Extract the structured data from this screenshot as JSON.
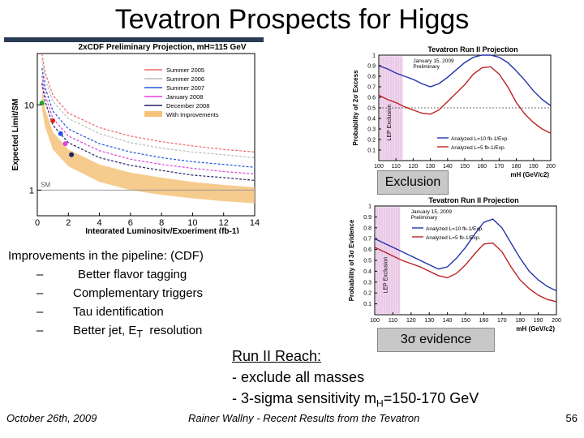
{
  "slide": {
    "title": "Tevatron Prospects for Higgs",
    "bullets_head": "Improvements in the pipeline: (CDF)",
    "bullets": [
      {
        "dash": "–",
        "text": "Better flavor tagging"
      },
      {
        "dash": "–",
        "text": "Complementary triggers"
      },
      {
        "dash": "–",
        "text": "Tau identification"
      }
    ],
    "last_bullet": {
      "dash": "–",
      "pre": "Better jet, E",
      "sub": "T",
      "post": "  resolution"
    },
    "reach": {
      "head": "Run II Reach:",
      "line1": "- exclude all masses",
      "line2_pre": "- 3-sigma sensitivity m",
      "line2_sub": "H",
      "line2_post": "=150-170 GeV"
    },
    "callout_exclusion": "Exclusion",
    "callout_evidence_sym": "3σ",
    "callout_evidence_txt": " evidence",
    "footer_date": "October 26th, 2009",
    "footer_center": "Rainer Wallny - Recent Results from the Tevatron",
    "page_number": "56"
  },
  "chart_data": [
    {
      "type": "line",
      "title": "2xCDF Preliminary Projection, mH=115 GeV",
      "xlabel": "Integrated Luminosity/Experiment (fb-1)",
      "ylabel": "Expected Limit/SM",
      "yscale": "log",
      "xlim": [
        0,
        14
      ],
      "ylim": [
        0.5,
        40
      ],
      "x_ticks": [
        0,
        2,
        4,
        6,
        8,
        10,
        12,
        14
      ],
      "y_ticks": [
        1,
        10
      ],
      "sm_label": "SM",
      "legend": [
        "Summer 2005",
        "Summer 2006",
        "Summer 2007",
        "January 2008",
        "December 2008",
        "With Improvements"
      ],
      "legend_colors": [
        "#ee6666",
        "#bbbbbb",
        "#2255dd",
        "#dd44dd",
        "#222266",
        "#f5c27a"
      ],
      "series": [
        {
          "name": "Summer 2005",
          "color": "#ee6666",
          "points": [
            [
              0.3,
              40
            ],
            [
              0.5,
              24
            ],
            [
              1,
              13
            ],
            [
              2,
              8
            ],
            [
              4,
              5.4
            ],
            [
              6,
              4.3
            ],
            [
              8,
              3.7
            ],
            [
              10,
              3.3
            ],
            [
              12,
              3.0
            ],
            [
              14,
              2.8
            ]
          ]
        },
        {
          "name": "Summer 2006",
          "color": "#bbbbbb",
          "points": [
            [
              0.3,
              34
            ],
            [
              0.5,
              20
            ],
            [
              1,
              11
            ],
            [
              2,
              6.9
            ],
            [
              4,
              4.6
            ],
            [
              6,
              3.6
            ],
            [
              8,
              3.1
            ],
            [
              10,
              2.8
            ],
            [
              12,
              2.6
            ],
            [
              14,
              2.4
            ]
          ]
        },
        {
          "name": "Summer 2007",
          "color": "#2255dd",
          "points": [
            [
              0.3,
              27
            ],
            [
              0.5,
              16
            ],
            [
              1,
              8.5
            ],
            [
              2,
              5.2
            ],
            [
              4,
              3.5
            ],
            [
              6,
              2.8
            ],
            [
              8,
              2.4
            ],
            [
              10,
              2.15
            ],
            [
              12,
              2.0
            ],
            [
              14,
              1.85
            ]
          ]
        },
        {
          "name": "January 2008",
          "color": "#dd44dd",
          "points": [
            [
              0.3,
              22
            ],
            [
              0.5,
              13
            ],
            [
              1,
              7
            ],
            [
              2,
              4.3
            ],
            [
              4,
              2.9
            ],
            [
              6,
              2.3
            ],
            [
              8,
              2.0
            ],
            [
              10,
              1.8
            ],
            [
              12,
              1.65
            ],
            [
              14,
              1.55
            ]
          ]
        },
        {
          "name": "December 2008",
          "color": "#222266",
          "points": [
            [
              0.3,
              18
            ],
            [
              0.5,
              11
            ],
            [
              1,
              5.8
            ],
            [
              2,
              3.6
            ],
            [
              4,
              2.4
            ],
            [
              6,
              1.95
            ],
            [
              8,
              1.7
            ],
            [
              10,
              1.5
            ],
            [
              12,
              1.4
            ],
            [
              14,
              1.3
            ]
          ]
        }
      ],
      "improvement_band": {
        "upper": [
          [
            0.3,
            16
          ],
          [
            0.5,
            9
          ],
          [
            1,
            4.8
          ],
          [
            2,
            3.0
          ],
          [
            4,
            2.0
          ],
          [
            6,
            1.6
          ],
          [
            8,
            1.4
          ],
          [
            10,
            1.25
          ],
          [
            12,
            1.15
          ],
          [
            14,
            1.08
          ]
        ],
        "lower": [
          [
            0.3,
            9
          ],
          [
            0.5,
            5.5
          ],
          [
            1,
            3.0
          ],
          [
            2,
            1.9
          ],
          [
            4,
            1.25
          ],
          [
            6,
            1.0
          ],
          [
            8,
            0.88
          ],
          [
            10,
            0.8
          ],
          [
            12,
            0.74
          ],
          [
            14,
            0.7
          ]
        ]
      },
      "markers": [
        {
          "x": 0.3,
          "y": 10.5,
          "color": "#22aa22"
        },
        {
          "x": 1.0,
          "y": 6.5,
          "color": "#dd2222"
        },
        {
          "x": 1.5,
          "y": 4.6,
          "color": "#2255dd"
        },
        {
          "x": 1.8,
          "y": 3.5,
          "color": "#dd44dd"
        },
        {
          "x": 2.2,
          "y": 2.6,
          "color": "#222266"
        }
      ]
    },
    {
      "type": "line",
      "title": "Tevatron Run II Projection",
      "subtitle": "January 15, 2009",
      "subtitle2": "Preliminary",
      "xlabel": "mH (GeV/c2)",
      "ylabel": "Probability of 2σ Excess",
      "band_label": "LEP Exclusion",
      "xlim": [
        100,
        200
      ],
      "ylim": [
        0,
        1
      ],
      "x_ticks": [
        100,
        110,
        120,
        130,
        140,
        150,
        160,
        170,
        180,
        190,
        200
      ],
      "y_ticks": [
        0.1,
        0.2,
        0.3,
        0.4,
        0.5,
        0.6,
        0.7,
        0.8,
        0.9,
        1
      ],
      "reference_y": 0.5,
      "series": [
        {
          "name": "Analyzed L=10 fb-1/Exp.",
          "color": "#2233aa",
          "x": [
            100,
            105,
            110,
            115,
            120,
            125,
            130,
            135,
            140,
            145,
            150,
            155,
            160,
            165,
            170,
            175,
            180,
            185,
            190,
            195,
            200
          ],
          "values": [
            0.9,
            0.87,
            0.83,
            0.8,
            0.77,
            0.73,
            0.7,
            0.73,
            0.79,
            0.86,
            0.93,
            0.98,
            1.0,
            1.0,
            0.98,
            0.93,
            0.85,
            0.76,
            0.66,
            0.58,
            0.52
          ]
        },
        {
          "name": "Analyzed L=5 fb-1/Exp.",
          "color": "#bb2222",
          "x": [
            100,
            105,
            110,
            115,
            120,
            125,
            130,
            135,
            140,
            145,
            150,
            155,
            160,
            165,
            170,
            175,
            180,
            185,
            190,
            195,
            200
          ],
          "values": [
            0.62,
            0.58,
            0.55,
            0.51,
            0.48,
            0.45,
            0.44,
            0.48,
            0.56,
            0.64,
            0.72,
            0.82,
            0.88,
            0.89,
            0.82,
            0.7,
            0.55,
            0.44,
            0.36,
            0.3,
            0.26
          ]
        }
      ]
    },
    {
      "type": "line",
      "title": "Tevatron Run II Projection",
      "subtitle": "January 15, 2009",
      "subtitle2": "Preliminary",
      "xlabel": "mH (GeV/c2)",
      "ylabel": "Probability of 3σ Evidence",
      "band_label": "LEP Exclusion",
      "xlim": [
        100,
        200
      ],
      "ylim": [
        0,
        1
      ],
      "x_ticks": [
        100,
        110,
        120,
        130,
        140,
        150,
        160,
        170,
        180,
        190,
        200
      ],
      "y_ticks": [
        0.1,
        0.2,
        0.3,
        0.4,
        0.5,
        0.6,
        0.7,
        0.8,
        0.9,
        1
      ],
      "series": [
        {
          "name": "Analyzed L=10 fb-1/Exp.",
          "color": "#2233aa",
          "x": [
            100,
            105,
            110,
            115,
            120,
            125,
            130,
            135,
            140,
            145,
            150,
            155,
            160,
            165,
            170,
            175,
            180,
            185,
            190,
            195,
            200
          ],
          "values": [
            0.7,
            0.66,
            0.62,
            0.58,
            0.54,
            0.5,
            0.46,
            0.42,
            0.44,
            0.52,
            0.62,
            0.74,
            0.85,
            0.88,
            0.8,
            0.66,
            0.52,
            0.4,
            0.32,
            0.26,
            0.22
          ]
        },
        {
          "name": "Analyzed L=5 fb-1/Exp.",
          "color": "#bb2222",
          "x": [
            100,
            105,
            110,
            115,
            120,
            125,
            130,
            135,
            140,
            145,
            150,
            155,
            160,
            165,
            170,
            175,
            180,
            185,
            190,
            195,
            200
          ],
          "values": [
            0.62,
            0.58,
            0.54,
            0.5,
            0.47,
            0.44,
            0.4,
            0.36,
            0.34,
            0.38,
            0.46,
            0.56,
            0.65,
            0.66,
            0.58,
            0.44,
            0.32,
            0.24,
            0.18,
            0.14,
            0.12
          ]
        }
      ]
    }
  ]
}
